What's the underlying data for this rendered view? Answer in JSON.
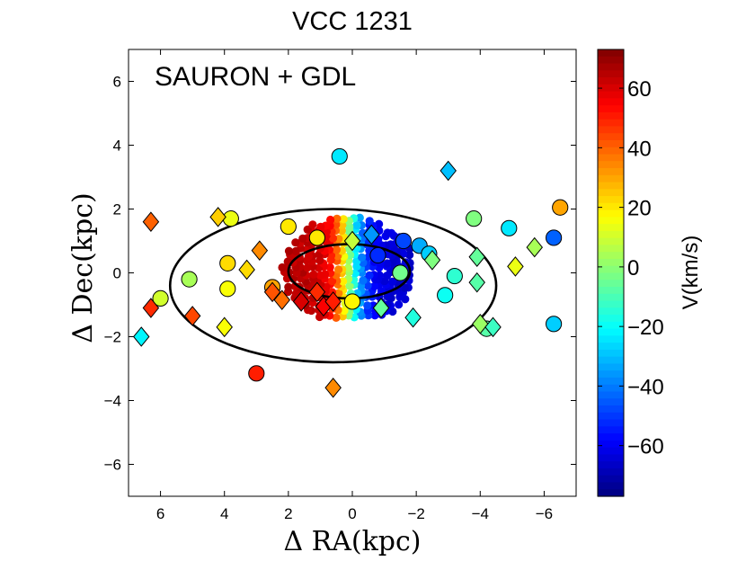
{
  "chart_data": {
    "type": "scatter",
    "title": "VCC 1231",
    "annotation": "SAURON + GDL",
    "xlabel": "Δ RA(kpc)",
    "ylabel": "Δ Dec(kpc)",
    "xlim": [
      7,
      -7
    ],
    "ylim": [
      -7,
      7
    ],
    "xticks": [
      6,
      4,
      2,
      0,
      -2,
      -4,
      -6
    ],
    "yticks": [
      -6,
      -4,
      -2,
      0,
      2,
      4,
      6
    ],
    "xtick_labels": [
      "6",
      "4",
      "2",
      "0",
      "−2",
      "−4",
      "−6"
    ],
    "ytick_labels": [
      "−6",
      "−4",
      "−2",
      "0",
      "2",
      "4",
      "6"
    ],
    "colorbar": {
      "label": "V(km/s)",
      "range": [
        -77,
        73
      ],
      "ticks": [
        60,
        40,
        20,
        0,
        -20,
        -40,
        -60
      ],
      "tick_labels": [
        "60",
        "40",
        "20",
        "0",
        "−20",
        "−40",
        "−60"
      ]
    },
    "ellipses": [
      {
        "name": "outer",
        "center": [
          0.6,
          -0.4
        ],
        "semi_axes": [
          5.1,
          2.4
        ]
      },
      {
        "name": "inner",
        "center": [
          0.1,
          0.05
        ],
        "semi_axes": [
          1.9,
          0.85
        ]
      }
    ],
    "sauron_field": {
      "center": [
        0.1,
        0.1
      ],
      "half_extent": [
        2.1,
        1.65
      ],
      "velocity_range": [
        -65,
        65
      ]
    },
    "series": [
      {
        "name": "circles",
        "points": [
          {
            "x": 0.4,
            "y": 3.65,
            "v": -24
          },
          {
            "x": 3.8,
            "y": 1.7,
            "v": 14
          },
          {
            "x": 2.0,
            "y": 1.45,
            "v": 20
          },
          {
            "x": 1.1,
            "y": 1.1,
            "v": 20
          },
          {
            "x": -1.6,
            "y": 1.0,
            "v": -48
          },
          {
            "x": -2.1,
            "y": 0.85,
            "v": -33
          },
          {
            "x": -2.4,
            "y": 0.6,
            "v": -28
          },
          {
            "x": -3.8,
            "y": 1.7,
            "v": -2
          },
          {
            "x": -4.9,
            "y": 1.4,
            "v": -24
          },
          {
            "x": -6.3,
            "y": 1.1,
            "v": -44
          },
          {
            "x": -6.5,
            "y": 2.05,
            "v": 30
          },
          {
            "x": 3.9,
            "y": 0.3,
            "v": 22
          },
          {
            "x": 5.1,
            "y": -0.2,
            "v": 4
          },
          {
            "x": 6.0,
            "y": -0.8,
            "v": 10
          },
          {
            "x": 3.9,
            "y": -0.5,
            "v": 16
          },
          {
            "x": 2.5,
            "y": -0.45,
            "v": 30
          },
          {
            "x": 0.0,
            "y": -0.9,
            "v": 18
          },
          {
            "x": -1.5,
            "y": 0.0,
            "v": -4
          },
          {
            "x": -3.2,
            "y": -0.1,
            "v": -14
          },
          {
            "x": -2.9,
            "y": -0.7,
            "v": -19
          },
          {
            "x": -4.2,
            "y": -1.75,
            "v": -8
          },
          {
            "x": -6.3,
            "y": -1.6,
            "v": -28
          },
          {
            "x": -0.8,
            "y": 0.55,
            "v": -52
          },
          {
            "x": 3.0,
            "y": -3.15,
            "v": 50
          }
        ]
      },
      {
        "name": "diamonds",
        "points": [
          {
            "x": 6.3,
            "y": 1.6,
            "v": 40
          },
          {
            "x": 4.2,
            "y": 1.75,
            "v": 24
          },
          {
            "x": 2.9,
            "y": 0.7,
            "v": 34
          },
          {
            "x": 3.3,
            "y": 0.1,
            "v": 22
          },
          {
            "x": 2.5,
            "y": -0.6,
            "v": 42
          },
          {
            "x": 2.2,
            "y": -0.85,
            "v": 38
          },
          {
            "x": 1.6,
            "y": -0.9,
            "v": 60
          },
          {
            "x": 0.9,
            "y": -1.05,
            "v": 55
          },
          {
            "x": 0.6,
            "y": -0.9,
            "v": 50
          },
          {
            "x": 1.1,
            "y": -0.6,
            "v": 48
          },
          {
            "x": 6.3,
            "y": -1.1,
            "v": 48
          },
          {
            "x": 5.0,
            "y": -1.35,
            "v": 44
          },
          {
            "x": 4.0,
            "y": -1.7,
            "v": 16
          },
          {
            "x": 6.6,
            "y": -2.0,
            "v": -22
          },
          {
            "x": 0.6,
            "y": -3.6,
            "v": 34
          },
          {
            "x": -0.6,
            "y": 1.2,
            "v": -36
          },
          {
            "x": -0.9,
            "y": -1.1,
            "v": -6
          },
          {
            "x": -1.9,
            "y": -1.4,
            "v": -16
          },
          {
            "x": -2.5,
            "y": 0.4,
            "v": -2
          },
          {
            "x": -3.0,
            "y": 3.2,
            "v": -30
          },
          {
            "x": -3.9,
            "y": 0.5,
            "v": -6
          },
          {
            "x": -3.9,
            "y": -0.3,
            "v": -8
          },
          {
            "x": -4.0,
            "y": -1.6,
            "v": 2
          },
          {
            "x": -4.4,
            "y": -1.7,
            "v": -12
          },
          {
            "x": -5.1,
            "y": 0.2,
            "v": 14
          },
          {
            "x": -5.7,
            "y": 0.8,
            "v": 4
          },
          {
            "x": 0.0,
            "y": 1.0,
            "v": 8
          }
        ]
      }
    ]
  }
}
